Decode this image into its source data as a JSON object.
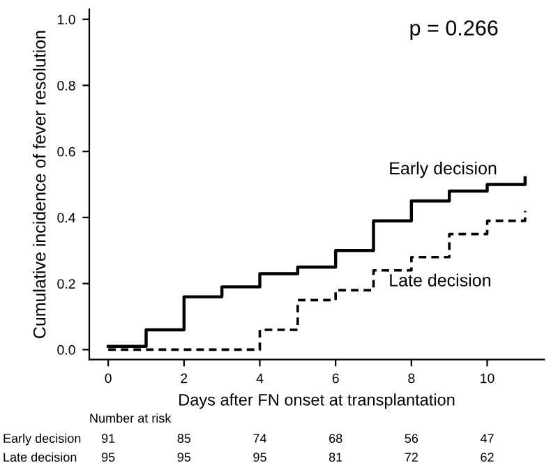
{
  "chart_data": {
    "type": "step",
    "xlabel": "Days after FN onset at transplantation",
    "ylabel": "Cumulative incidence of fever resolution",
    "xlim": [
      -0.5,
      11.5
    ],
    "ylim": [
      -0.03,
      1.03
    ],
    "xticks": [
      0,
      2,
      4,
      6,
      8,
      10
    ],
    "yticks": [
      {
        "value": 0,
        "label": "0.0"
      },
      {
        "value": 0.2,
        "label": "0.2"
      },
      {
        "value": 0.4,
        "label": "0.4"
      },
      {
        "value": 0.6,
        "label": "0.6"
      },
      {
        "value": 0.8,
        "label": "0.8"
      },
      {
        "value": 1,
        "label": "1.0"
      }
    ],
    "grid": false,
    "legend": false,
    "series": [
      {
        "name": "Early decision",
        "color": "#000000",
        "line_style": "solid",
        "x": [
          0,
          1,
          2,
          3,
          4,
          5,
          6,
          7,
          8,
          9,
          10,
          11,
          11
        ],
        "values": [
          0.01,
          0.06,
          0.16,
          0.19,
          0.23,
          0.25,
          0.3,
          0.39,
          0.45,
          0.48,
          0.5,
          0.5,
          0.52
        ]
      },
      {
        "name": "Late decision",
        "color": "#000000",
        "line_style": "dashed",
        "x": [
          0,
          1,
          2,
          3,
          4,
          5,
          6,
          7,
          8,
          9,
          10,
          11,
          11
        ],
        "values": [
          0,
          0,
          0,
          0,
          0.06,
          0.15,
          0.18,
          0.24,
          0.28,
          0.35,
          0.39,
          0.39,
          0.42
        ]
      }
    ],
    "annotations": [
      "p = 0.266",
      "Number at risk",
      "Early decision",
      "91",
      "85",
      "74",
      "68",
      "56",
      "47",
      "Late decision",
      "95",
      "95",
      "95",
      "81",
      "72",
      "62"
    ]
  }
}
